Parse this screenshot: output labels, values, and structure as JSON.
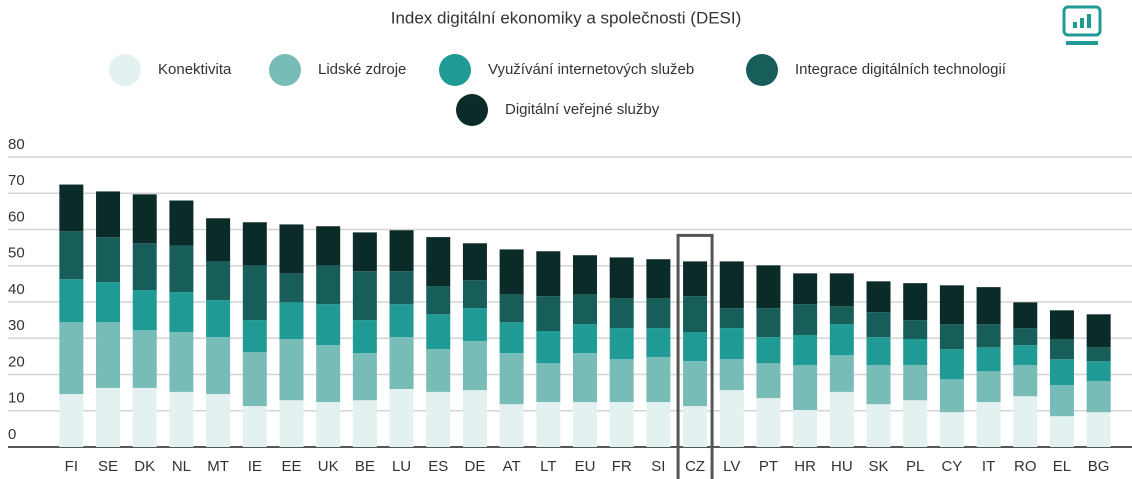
{
  "chart_data": {
    "type": "stacked_bar",
    "title": "Index digitální ekonomiky a společnosti (DESI)",
    "categories": [
      "FI",
      "SE",
      "DK",
      "NL",
      "MT",
      "IE",
      "EE",
      "UK",
      "BE",
      "LU",
      "ES",
      "DE",
      "AT",
      "LT",
      "EU",
      "FR",
      "SI",
      "CZ",
      "LV",
      "PT",
      "HR",
      "HU",
      "SK",
      "PL",
      "CY",
      "IT",
      "RO",
      "EL",
      "BG"
    ],
    "series": [
      {
        "name": "Konektivita",
        "color": "#e3f1f0",
        "values": [
          14.6,
          16.3,
          16.3,
          15.2,
          14.6,
          11.3,
          12.9,
          12.4,
          12.9,
          16.0,
          15.2,
          15.7,
          11.8,
          12.4,
          12.4,
          12.4,
          12.4,
          11.3,
          15.7,
          13.5,
          10.2,
          15.2,
          11.8,
          12.9,
          9.6,
          12.4,
          14.0,
          8.5,
          9.6
        ]
      },
      {
        "name": "Lidské zdroje",
        "color": "#78bcb8",
        "values": [
          19.8,
          18.1,
          15.9,
          16.5,
          15.7,
          14.9,
          16.9,
          15.7,
          13.0,
          14.3,
          11.8,
          13.5,
          14.1,
          10.7,
          13.5,
          11.8,
          12.4,
          12.4,
          8.5,
          9.6,
          12.4,
          10.1,
          10.8,
          9.7,
          9.1,
          8.5,
          8.6,
          8.6,
          8.6
        ]
      },
      {
        "name": "Využívání internetových služeb",
        "color": "#1f9a94",
        "values": [
          11.9,
          11.1,
          11.1,
          11.0,
          10.2,
          8.8,
          10.1,
          11.3,
          9.1,
          9.1,
          9.6,
          9.1,
          8.5,
          8.9,
          8.0,
          8.6,
          8.0,
          8.0,
          8.6,
          7.2,
          8.3,
          8.6,
          7.7,
          7.2,
          8.3,
          6.6,
          5.5,
          7.1,
          5.5
        ]
      },
      {
        "name": "Integrace digitálních technologií",
        "color": "#175e5b",
        "values": [
          13.2,
          12.4,
          12.9,
          12.9,
          10.7,
          15.1,
          8.0,
          10.7,
          13.5,
          9.1,
          7.8,
          7.7,
          7.7,
          9.6,
          8.2,
          8.2,
          8.2,
          9.9,
          5.5,
          8.0,
          8.5,
          4.9,
          6.9,
          5.2,
          6.9,
          6.4,
          4.7,
          5.6,
          3.8
        ]
      },
      {
        "name": "Digitální veřejné služby",
        "color": "#0b2b29",
        "values": [
          12.9,
          12.6,
          13.5,
          12.4,
          11.9,
          11.9,
          13.5,
          10.8,
          10.7,
          11.3,
          13.5,
          10.2,
          12.4,
          12.4,
          10.8,
          11.3,
          10.8,
          9.6,
          12.9,
          11.8,
          8.5,
          9.1,
          8.5,
          10.2,
          10.7,
          10.2,
          7.1,
          7.9,
          9.1
        ]
      }
    ],
    "ylim": [
      0,
      80
    ],
    "yticks": [
      0,
      10,
      20,
      30,
      40,
      50,
      60,
      70,
      80
    ],
    "grid": true
  }
}
